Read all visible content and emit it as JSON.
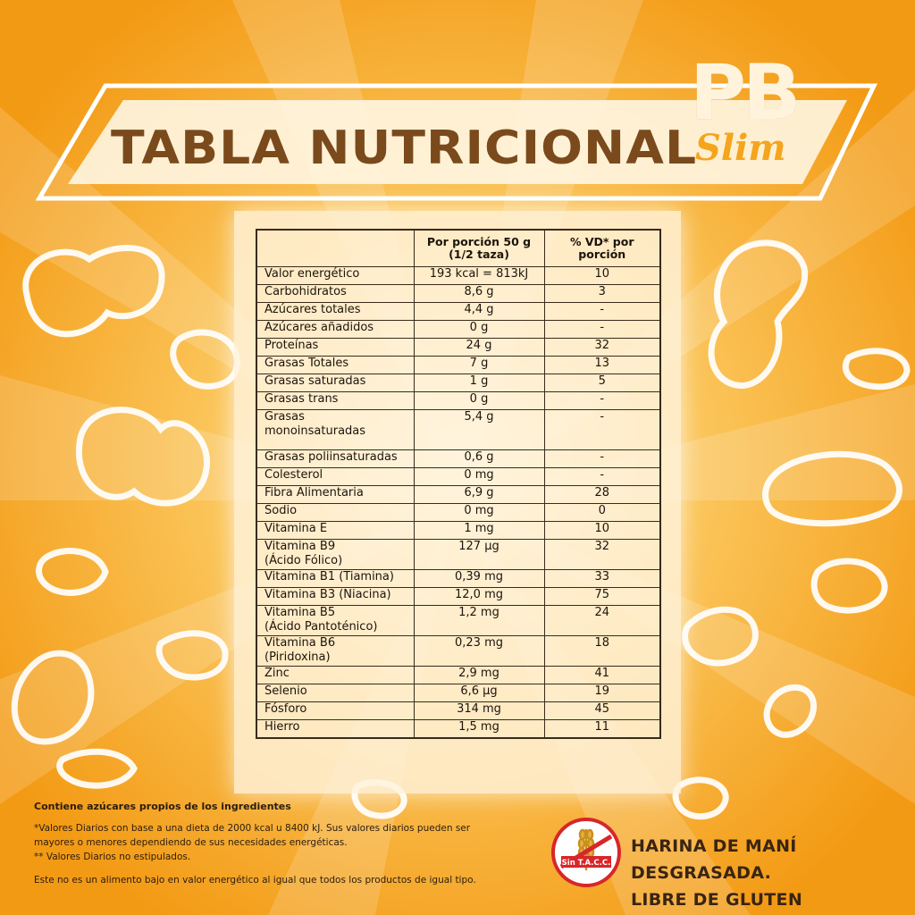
{
  "title": "TABLA NUTRICIONAL",
  "brand": {
    "top": "PB",
    "bottom": "Slim"
  },
  "table": {
    "headers": [
      "",
      "Por porción 50 g\n(1/2 taza)",
      "% VD* por\nporción"
    ],
    "rows": [
      [
        "Valor  energético",
        "193  kcal = 813kJ",
        "10"
      ],
      [
        "Carbohidratos",
        "8,6 g",
        "3"
      ],
      [
        "Azúcares totales",
        "4,4 g",
        "-"
      ],
      [
        "Azúcares añadidos",
        "0 g",
        "-"
      ],
      [
        "Proteínas",
        "24 g",
        "32"
      ],
      [
        "Grasas Totales",
        "7  g",
        "13"
      ],
      [
        "Grasas saturadas",
        "1 g",
        "5"
      ],
      [
        "Grasas trans",
        "0 g",
        "-"
      ],
      [
        "Grasas\nmonoinsaturadas",
        "5,4 g",
        "-"
      ],
      [
        "Grasas   poliinsaturadas",
        "0,6 g",
        "-"
      ],
      [
        "Colesterol",
        "0 mg",
        "-"
      ],
      [
        "Fibra Alimentaria",
        "6,9 g",
        "28"
      ],
      [
        "Sodio",
        "0 mg",
        "0"
      ],
      [
        "Vitamina E",
        "1 mg",
        "10"
      ],
      [
        "Vitamina B9\n(Ácido Fólico)",
        "127 µg",
        "32"
      ],
      [
        "Vitamina B1 (Tiamina)",
        "0,39 mg",
        "33"
      ],
      [
        "Vitamina B3 (Niacina)",
        "12,0 mg",
        "75"
      ],
      [
        "Vitamina B5\n(Ácido Pantoténico)",
        "1,2 mg",
        "24"
      ],
      [
        "Vitamina B6\n(Piridoxina)",
        "0,23 mg",
        "18"
      ],
      [
        "Zinc",
        "2,9 mg",
        "41"
      ],
      [
        "Selenio",
        "6,6 µg",
        "19"
      ],
      [
        "Fósforo",
        "314 mg",
        "45"
      ],
      [
        "Hierro",
        "1,5 mg",
        "11"
      ]
    ]
  },
  "notes": {
    "sugars": "Contiene azúcares propios de los ingredientes",
    "vd1": "*Valores Diarios con base a una dieta de 2000 kcal u 8400 kJ. Sus valores diarios pueden ser",
    "vd2": "mayores o menores dependiendo de sus necesidades energéticas.",
    "vd3": "** Valores Diarios no estipulados.",
    "energy": "Este no es un alimento bajo en valor energético al igual que todos los productos de igual tipo."
  },
  "seal": {
    "text": "Sin T.A.C.C."
  },
  "claim": {
    "line1": "HARINA DE MANÍ DESGRASADA.",
    "line2": "LIBRE DE GLUTEN"
  },
  "colors": {
    "background": "#f7a91c",
    "title": "#7a4a1c",
    "seal_red": "#d8262a"
  }
}
